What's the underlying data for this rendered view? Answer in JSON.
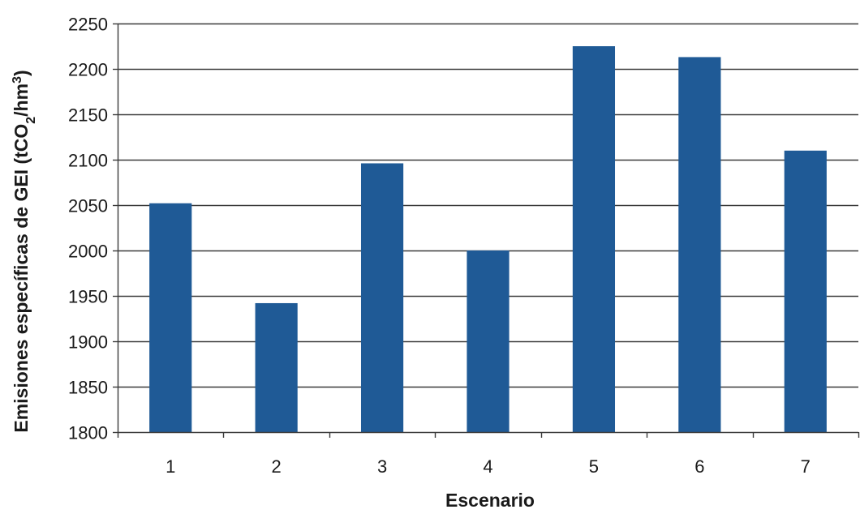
{
  "chart_data": {
    "type": "bar",
    "categories": [
      "1",
      "2",
      "3",
      "4",
      "5",
      "6",
      "7"
    ],
    "values": [
      2052,
      1942,
      2096,
      2000,
      2225,
      2213,
      2110
    ],
    "xlabel": "Escenario",
    "ylabel": {
      "prefix": "Emisiones específicas de GEI (tCO",
      "sub": "2",
      "mid": "/hm",
      "sup": "3",
      "suffix": ")"
    },
    "ylim": [
      1800,
      2250
    ],
    "yticks": [
      1800,
      1850,
      1900,
      1950,
      2000,
      2050,
      2100,
      2150,
      2200,
      2250
    ],
    "grid": true,
    "legend": "none",
    "colors": {
      "bar": "#1f5a96",
      "grid": "#3a3a3a",
      "axis": "#3a3a3a"
    }
  }
}
